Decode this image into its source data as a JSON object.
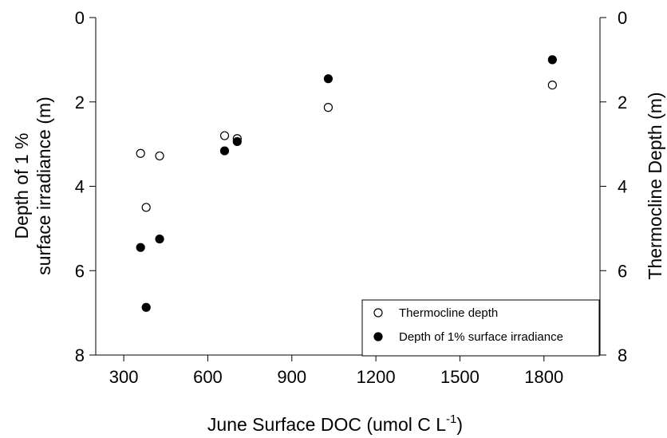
{
  "chart_data": {
    "type": "scatter",
    "xlabel": "June Surface DOC (umol C L",
    "xlabel_superscript": "-1",
    "xlabel_suffix": ")",
    "ylabel_left_line1": "Depth of 1 %",
    "ylabel_left_line2": "surface irradiance (m)",
    "ylabel_right": "Thermocline Depth (m)",
    "xlim": [
      200,
      2000
    ],
    "ylim_left": [
      8,
      0
    ],
    "ylim_right": [
      8,
      0
    ],
    "x_ticks": [
      300,
      600,
      900,
      1200,
      1500,
      1800
    ],
    "x_tick_labels": [
      "300",
      "600",
      "900",
      "1200",
      "1500",
      "1800"
    ],
    "y_ticks": [
      0,
      2,
      4,
      6,
      8
    ],
    "y_tick_labels": [
      "0",
      "2",
      "4",
      "6",
      "8"
    ],
    "legend_position": "bottom-right",
    "series": [
      {
        "name": "Thermocline depth",
        "marker": "open-circle",
        "axis": "right",
        "points": [
          {
            "x": 360,
            "y": 3.22
          },
          {
            "x": 428,
            "y": 3.28
          },
          {
            "x": 380,
            "y": 4.5
          },
          {
            "x": 660,
            "y": 2.8
          },
          {
            "x": 705,
            "y": 2.87
          },
          {
            "x": 1030,
            "y": 2.13
          },
          {
            "x": 1830,
            "y": 1.6
          }
        ]
      },
      {
        "name": "Depth of 1% surface irradiance",
        "marker": "filled-circle",
        "axis": "left",
        "points": [
          {
            "x": 360,
            "y": 5.45
          },
          {
            "x": 428,
            "y": 5.25
          },
          {
            "x": 380,
            "y": 6.87
          },
          {
            "x": 660,
            "y": 3.16
          },
          {
            "x": 705,
            "y": 2.94
          },
          {
            "x": 1030,
            "y": 1.45
          },
          {
            "x": 1830,
            "y": 1.0
          }
        ]
      }
    ],
    "colors": {
      "axis": "#000000",
      "open_fill": "#ffffff",
      "filled_fill": "#000000"
    }
  }
}
